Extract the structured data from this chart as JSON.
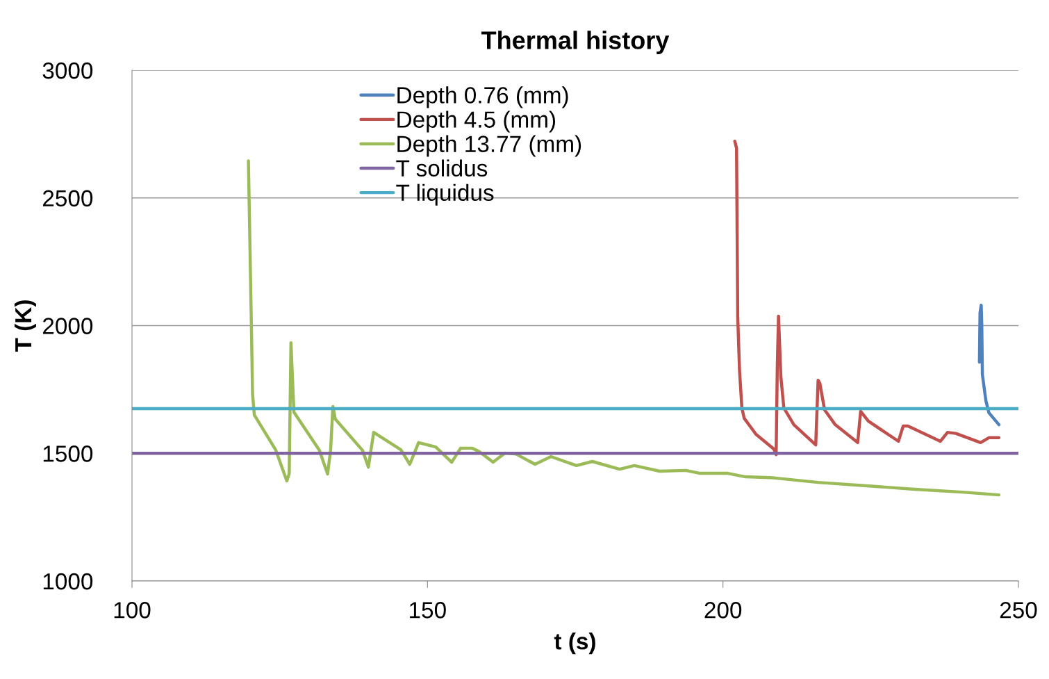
{
  "chart_data": {
    "type": "line",
    "title": "Thermal history",
    "xlabel": "t (s)",
    "ylabel": "T (K)",
    "xlim": [
      100,
      250
    ],
    "xticks": [
      100,
      150,
      200,
      250
    ],
    "ylim": [
      1000,
      3000
    ],
    "yticks": [
      1000,
      1500,
      2000,
      2500,
      3000
    ],
    "grid": "y",
    "legend": "top",
    "marker": "none",
    "line_style": "solid",
    "series": [
      {
        "name": "Depth 0.76 (mm)",
        "color": "#4f81bd",
        "x": [
          243.4,
          243.5,
          243.7,
          243.8,
          243.9,
          244.5,
          245.0,
          246.7
        ],
        "values": [
          1857,
          2050,
          2080,
          2000,
          1808,
          1705,
          1659,
          1612
        ]
      },
      {
        "name": "Depth 4.5 (mm)",
        "color": "#c0504d",
        "x": [
          202.0,
          202.3,
          202.5,
          202.8,
          203.2,
          203.6,
          205.6,
          208.6,
          209.0,
          209.2,
          209.4,
          209.8,
          210.3,
          212.0,
          215.7,
          216.1,
          216.4,
          217.2,
          219.0,
          222.8,
          223.3,
          224.6,
          229.7,
          230.5,
          231.3,
          236.8,
          238.0,
          239.4,
          243.6,
          245.0,
          246.7
        ],
        "values": [
          2722,
          2695,
          2034,
          1827,
          1678,
          1637,
          1574,
          1517,
          1495,
          1846,
          2037,
          1800,
          1678,
          1612,
          1533,
          1786,
          1774,
          1670,
          1612,
          1542,
          1664,
          1626,
          1547,
          1607,
          1607,
          1547,
          1582,
          1578,
          1542,
          1561,
          1561
        ]
      },
      {
        "name": "Depth 13.77 (mm)",
        "color": "#9bbb59",
        "x": [
          119.7,
          120.2,
          120.4,
          120.7,
          124.3,
          126.2,
          126.6,
          126.9,
          127.4,
          131.7,
          133.1,
          133.6,
          134.0,
          134.4,
          139.0,
          140.0,
          140.9,
          145.5,
          147.0,
          148.5,
          151.4,
          154.1,
          155.6,
          157.6,
          158.8,
          161.1,
          163.1,
          165.0,
          168.2,
          170.9,
          175.2,
          177.9,
          182.5,
          185.0,
          189.3,
          193.7,
          196.0,
          200.7,
          203.8,
          208.0,
          216.1,
          224.3,
          232.4,
          240.5,
          246.7
        ],
        "values": [
          2645,
          2004,
          1732,
          1650,
          1514,
          1392,
          1420,
          1933,
          1661,
          1512,
          1419,
          1510,
          1683,
          1634,
          1512,
          1446,
          1582,
          1514,
          1457,
          1542,
          1525,
          1465,
          1520,
          1520,
          1506,
          1465,
          1501,
          1497,
          1457,
          1487,
          1452,
          1468,
          1438,
          1452,
          1430,
          1433,
          1422,
          1422,
          1408,
          1405,
          1386,
          1373,
          1359,
          1348,
          1337
        ]
      },
      {
        "name": "T solidus",
        "color": "#8064a2",
        "x": [
          100,
          250
        ],
        "values": [
          1500,
          1500
        ]
      },
      {
        "name": "T liquidus",
        "color": "#4bacc6",
        "x": [
          100,
          250
        ],
        "values": [
          1675,
          1675
        ]
      }
    ]
  }
}
